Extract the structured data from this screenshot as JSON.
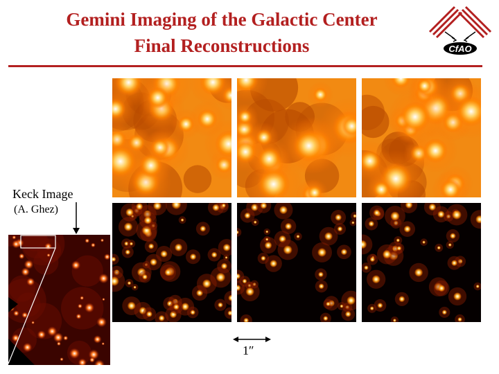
{
  "header": {
    "title_line1": "Gemini Imaging of the Galactic Center",
    "title_line2": "Final Reconstructions",
    "logo_text": "CfAO",
    "accent_color": "#b32020"
  },
  "keck": {
    "label": "Keck Image",
    "credit": "(A. Ghez)"
  },
  "scale_bar": {
    "label": "1″"
  },
  "colormap": [
    "#000000",
    "#5a0a00",
    "#b32400",
    "#ff7a00",
    "#ffc040",
    "#ffffff"
  ],
  "panels": {
    "top_row": [
      "top-reconstruction-1",
      "top-reconstruction-2",
      "top-reconstruction-3"
    ],
    "bottom_row": [
      "bottom-reconstruction-1",
      "bottom-reconstruction-2",
      "bottom-reconstruction-3"
    ]
  }
}
